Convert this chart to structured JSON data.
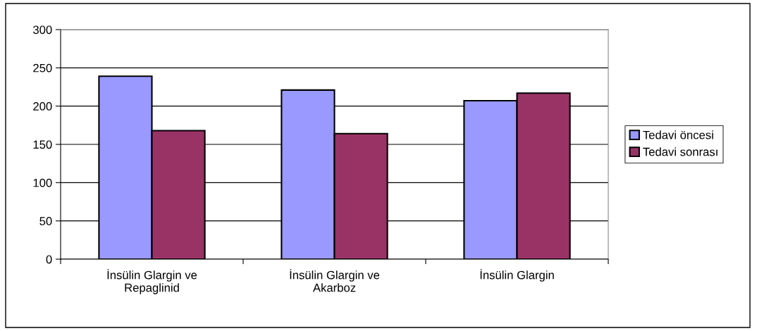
{
  "chart_data": {
    "type": "bar",
    "categories": [
      "İnsülin Glargin ve\nRepaglinid",
      "İnsülin Glargin ve\nAkarboz",
      "İnsülin Glargin"
    ],
    "series": [
      {
        "name": "Tedavi öncesi",
        "color": "#9999ff",
        "values": [
          239,
          221,
          207
        ]
      },
      {
        "name": "Tedavi sonrası",
        "color": "#993366",
        "values": [
          168,
          164,
          217
        ]
      }
    ],
    "ylim": [
      0,
      300
    ],
    "yticks": [
      0,
      50,
      100,
      150,
      200,
      250,
      300
    ],
    "grid": "y",
    "legend": "right"
  }
}
